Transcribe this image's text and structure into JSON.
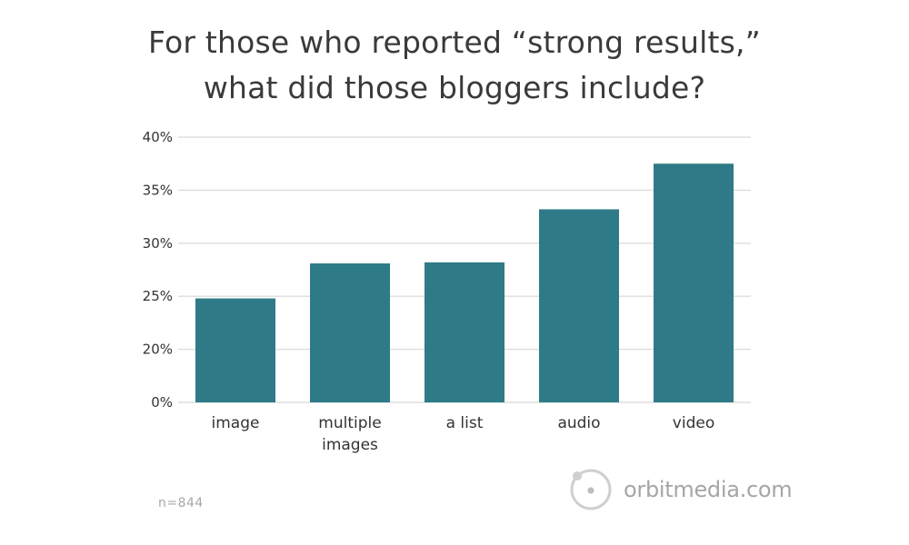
{
  "chart_data": {
    "type": "bar",
    "title": [
      "For those who reported “strong results,”",
      "what did those bloggers include?"
    ],
    "categories": [
      [
        "image"
      ],
      [
        "multiple",
        "images"
      ],
      [
        "a list"
      ],
      [
        "audio"
      ],
      [
        "video"
      ]
    ],
    "values": [
      24.8,
      28.1,
      28.2,
      33.2,
      37.5
    ],
    "y_ticks": [
      {
        "value": 0,
        "label": "0%"
      },
      {
        "value": 20,
        "label": "20%"
      },
      {
        "value": 25,
        "label": "25%"
      },
      {
        "value": 30,
        "label": "30%"
      },
      {
        "value": 35,
        "label": "35%"
      },
      {
        "value": 40,
        "label": "40%"
      }
    ],
    "ylim": [
      15,
      40
    ],
    "axis_break": true,
    "grid": true,
    "bar_color": "#2e7b87",
    "grid_color": "#dddddd"
  },
  "footnote": "n=844",
  "brand": {
    "name": "orbitmedia.com",
    "icon": "orbit-logo-icon"
  }
}
